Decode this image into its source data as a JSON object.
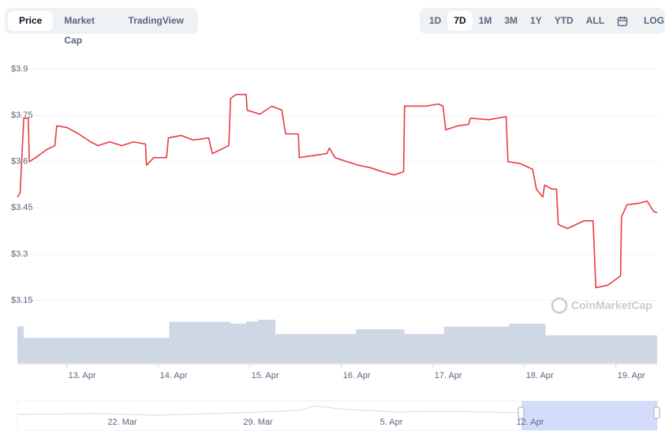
{
  "tabs": [
    "Price",
    "Market Cap",
    "TradingView"
  ],
  "active_tab": 0,
  "ranges": [
    "1D",
    "7D",
    "1M",
    "3M",
    "1Y",
    "YTD",
    "ALL"
  ],
  "active_range": 1,
  "log_button": "LOG",
  "watermark": "CoinMarketCap",
  "navigator": {
    "labels": [
      "22. Mar",
      "29. Mar",
      "5. Apr",
      "12. Apr"
    ]
  },
  "chart_data": {
    "type": "line",
    "color": "#ea3943",
    "grid": true,
    "x": [
      12.46,
      12.49,
      12.53,
      12.58,
      12.59,
      12.66,
      12.78,
      12.87,
      12.89,
      13.0,
      13.13,
      13.26,
      13.34,
      13.47,
      13.6,
      13.73,
      13.86,
      13.87,
      13.95,
      14.09,
      14.11,
      14.25,
      14.38,
      14.55,
      14.59,
      14.77,
      14.79,
      14.85,
      14.96,
      14.97,
      15.11,
      15.24,
      15.35,
      15.39,
      15.53,
      15.54,
      15.72,
      15.84,
      15.87,
      15.93,
      16.06,
      16.19,
      16.32,
      16.45,
      16.58,
      16.68,
      16.69,
      16.92,
      17.06,
      17.11,
      17.14,
      17.27,
      17.39,
      17.41,
      17.61,
      17.8,
      17.82,
      17.96,
      18.09,
      18.13,
      18.2,
      18.22,
      18.3,
      18.35,
      18.37,
      18.47,
      18.65,
      18.75,
      18.78,
      18.91,
      19.05,
      19.06,
      19.12,
      19.25,
      19.34,
      19.41,
      19.45
    ],
    "values": [
      3.485,
      3.498,
      3.741,
      3.741,
      3.6,
      3.613,
      3.639,
      3.652,
      3.716,
      3.711,
      3.69,
      3.664,
      3.652,
      3.664,
      3.652,
      3.664,
      3.657,
      3.588,
      3.613,
      3.613,
      3.677,
      3.685,
      3.67,
      3.677,
      3.626,
      3.652,
      3.805,
      3.818,
      3.818,
      3.767,
      3.754,
      3.78,
      3.767,
      3.69,
      3.69,
      3.613,
      3.621,
      3.626,
      3.644,
      3.613,
      3.6,
      3.588,
      3.58,
      3.567,
      3.557,
      3.567,
      3.78,
      3.78,
      3.787,
      3.78,
      3.703,
      3.716,
      3.721,
      3.741,
      3.736,
      3.746,
      3.6,
      3.593,
      3.575,
      3.511,
      3.485,
      3.524,
      3.511,
      3.511,
      3.396,
      3.383,
      3.408,
      3.408,
      3.191,
      3.199,
      3.229,
      3.421,
      3.46,
      3.465,
      3.472,
      3.439,
      3.434
    ],
    "xlim": [
      12.46,
      19.45
    ],
    "xticks": [
      {
        "value": 13,
        "label": "13. Apr"
      },
      {
        "value": 14,
        "label": "14. Apr"
      },
      {
        "value": 15,
        "label": "15. Apr"
      },
      {
        "value": 16,
        "label": "16. Apr"
      },
      {
        "value": 17,
        "label": "17. Apr"
      },
      {
        "value": 18,
        "label": "18. Apr"
      },
      {
        "value": 19,
        "label": "19. Apr"
      }
    ],
    "ylim": [
      3.1,
      3.94
    ],
    "yticks": [
      {
        "value": 3.15,
        "label": "$3.15"
      },
      {
        "value": 3.3,
        "label": "$3.3"
      },
      {
        "value": 3.45,
        "label": "$3.45"
      },
      {
        "value": 3.6,
        "label": "$3.6"
      },
      {
        "value": 3.75,
        "label": "$3.75"
      },
      {
        "value": 3.9,
        "label": "$3.9"
      }
    ],
    "volume": {
      "color": "#cfd6e4",
      "ylim": [
        0,
        100
      ],
      "x": [
        12.46,
        12.53,
        14.12,
        14.79,
        14.96,
        15.09,
        15.28,
        16.16,
        16.69,
        17.12,
        17.83,
        18.23
      ],
      "values": [
        85,
        58,
        95,
        91,
        96,
        100,
        67,
        78,
        67,
        84,
        91,
        64
      ]
    }
  }
}
